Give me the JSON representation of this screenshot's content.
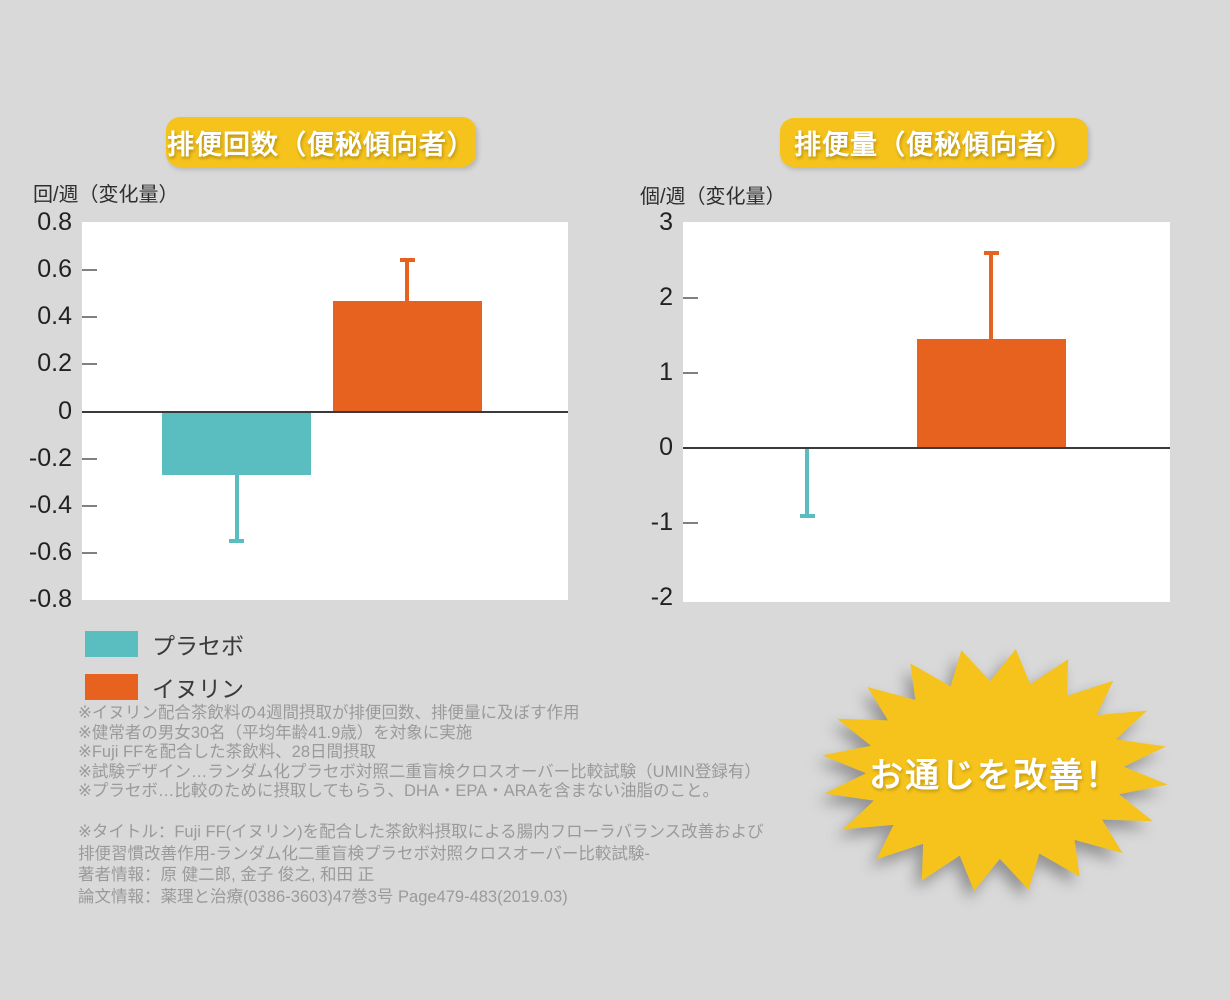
{
  "page": {
    "background_color": "#d9d9d9"
  },
  "colors": {
    "teal": "#5abec0",
    "orange": "#e8621f",
    "yellow": "#f5c31b",
    "axis_line": "#3a3a3a",
    "tick": "#808080",
    "tick_text": "#222222",
    "note_text": "#9a9a9a"
  },
  "chart_data": [
    {
      "type": "bar",
      "title": "排便回数（便秘傾向者）",
      "ylabel": "回/週（変化量）",
      "xlabel": "",
      "categories": [
        "プラセボ",
        "イヌリン"
      ],
      "values": [
        -0.27,
        0.47
      ],
      "error_whisker_ends": [
        -0.55,
        0.64
      ],
      "bar_colors": [
        "#5abec0",
        "#e8621f"
      ],
      "yticks": [
        "0.8",
        "0.6",
        "0.4",
        "0.2",
        "0",
        "-0.2",
        "-0.4",
        "-0.6",
        "-0.8"
      ],
      "ylim": [
        -0.8,
        0.8
      ],
      "grid": false,
      "legend_position": "below-left"
    },
    {
      "type": "bar",
      "title": "排便量（便秘傾向者）",
      "ylabel": "個/週（変化量）",
      "xlabel": "",
      "categories": [
        "プラセボ",
        "イヌリン"
      ],
      "values": [
        0,
        1.45
      ],
      "error_whisker_ends": [
        -0.9,
        2.6
      ],
      "bar_colors": [
        "#5abec0",
        "#e8621f"
      ],
      "yticks": [
        "3",
        "2",
        "1",
        "0",
        "-1",
        "-2"
      ],
      "ylim": [
        -2,
        3
      ],
      "grid": false,
      "legend_position": "below-left"
    }
  ],
  "legend": {
    "items": [
      {
        "label": "プラセボ",
        "color": "#5abec0"
      },
      {
        "label": "イヌリン",
        "color": "#e8621f"
      }
    ]
  },
  "notes": {
    "study_lines": [
      "※イヌリン配合茶飲料の4週間摂取が排便回数、排便量に及ぼす作用",
      "※健常者の男女30名（平均年齢41.9歳）を対象に実施",
      "※Fuji FFを配合した茶飲料、28日間摂取",
      "※試験デザイン…ランダム化プラセボ対照二重盲検クロスオーバー比較試験（UMIN登録有）",
      "※プラセボ…比較のために摂取してもらう、DHA・EPA・ARAを含まない油脂のこと。"
    ],
    "citation_lines": [
      "※タイトル：Fuji FF(イヌリン)を配合した茶飲料摂取による腸内フローラバランス改善および",
      "排便習慣改善作用-ランダム化二重盲検プラセボ対照クロスオーバー比較試験-",
      "著者情報：原 健二郎, 金子 俊之, 和田 正",
      "論文情報：薬理と治療(0386-3603)47巻3号 Page479-483(2019.03)"
    ]
  },
  "starburst": {
    "label": "お通じを改善！",
    "color": "#f5c31b"
  }
}
